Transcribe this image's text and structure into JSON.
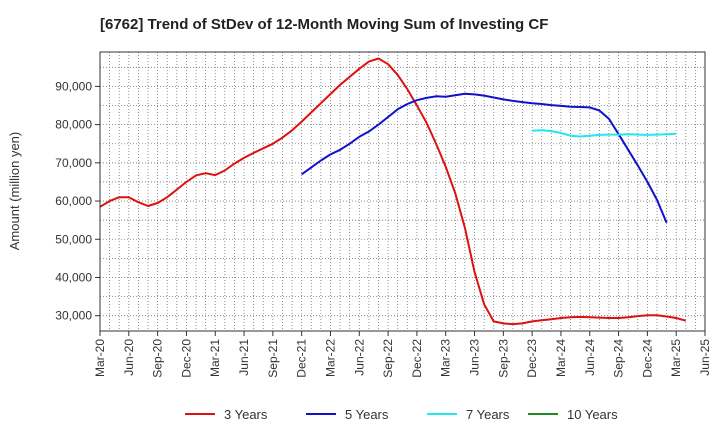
{
  "chart_data": {
    "type": "line",
    "title": "[6762]  Trend of StDev of 12-Month Moving Sum of Investing CF",
    "xlabel": "",
    "ylabel": "Amount (million yen)",
    "ylim": [
      26000,
      99000
    ],
    "yticks": [
      30000,
      40000,
      50000,
      60000,
      70000,
      80000,
      90000
    ],
    "ytick_labels": [
      "30,000",
      "40,000",
      "50,000",
      "60,000",
      "70,000",
      "80,000",
      "90,000"
    ],
    "x_tick_labels": [
      "Mar-20",
      "Jun-20",
      "Sep-20",
      "Dec-20",
      "Mar-21",
      "Jun-21",
      "Sep-21",
      "Dec-21",
      "Mar-22",
      "Jun-22",
      "Sep-22",
      "Dec-22",
      "Mar-23",
      "Jun-23",
      "Sep-23",
      "Dec-23",
      "Mar-24",
      "Jun-24",
      "Sep-24",
      "Dec-24",
      "Mar-25",
      "Jun-25"
    ],
    "grid": true,
    "legend_position": "bottom",
    "series": [
      {
        "name": "3 Years",
        "color": "#dd1111",
        "start": "Mar-20",
        "values": [
          58500,
          60000,
          61000,
          61000,
          59700,
          58700,
          59500,
          61000,
          63000,
          65000,
          66700,
          67300,
          66800,
          68000,
          69800,
          71300,
          72600,
          73800,
          75000,
          76600,
          78500,
          80800,
          83200,
          85600,
          88000,
          90400,
          92500,
          94600,
          96500,
          97300,
          95800,
          93000,
          89300,
          85000,
          80500,
          75000,
          69000,
          62000,
          53000,
          41500,
          33000,
          28500,
          28000,
          27800,
          28000,
          28500,
          28800,
          29100,
          29400,
          29600,
          29700,
          29600,
          29500,
          29400,
          29400,
          29600,
          29900,
          30100,
          30100,
          29800,
          29400,
          28700
        ]
      },
      {
        "name": "5 Years",
        "color": "#1111cc",
        "start": "Dec-21",
        "values": [
          67000,
          68800,
          70600,
          72200,
          73400,
          75000,
          76800,
          78200,
          80000,
          82000,
          84000,
          85400,
          86400,
          87000,
          87400,
          87300,
          87700,
          88100,
          87900,
          87600,
          87100,
          86600,
          86200,
          85900,
          85600,
          85400,
          85100,
          84900,
          84700,
          84600,
          84500,
          83700,
          81500,
          77500,
          73400,
          69300,
          65000,
          60300,
          54300
        ]
      },
      {
        "name": "7 Years",
        "color": "#22e6f0",
        "start": "Dec-23",
        "values": [
          78400,
          78500,
          78300,
          77800,
          77100,
          76900,
          77100,
          77300,
          77400,
          77400,
          77500,
          77400,
          77300,
          77400,
          77500,
          77600
        ]
      },
      {
        "name": "10 Years",
        "color": "#1f8a1f",
        "start": "Mar-20",
        "values": []
      }
    ]
  }
}
